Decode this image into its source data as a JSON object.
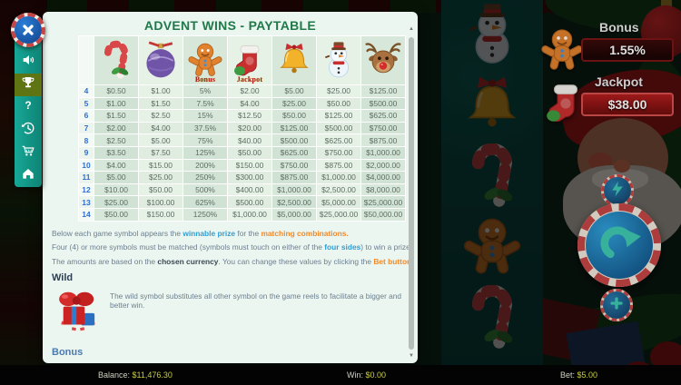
{
  "paytable": {
    "title": "ADVENT WINS - PAYTABLE",
    "symbols": [
      {
        "id": "candy-cane",
        "overlay": ""
      },
      {
        "id": "bauble",
        "overlay": ""
      },
      {
        "id": "gingerbread",
        "overlay": "Bonus"
      },
      {
        "id": "stocking",
        "overlay": "Jackpot"
      },
      {
        "id": "bell",
        "overlay": ""
      },
      {
        "id": "snowman",
        "overlay": ""
      },
      {
        "id": "reindeer",
        "overlay": ""
      }
    ],
    "rows": [
      {
        "count": "4",
        "values": [
          "$0.50",
          "$1.00",
          "5%",
          "$2.00",
          "$5.00",
          "$25.00",
          "$125.00"
        ]
      },
      {
        "count": "5",
        "values": [
          "$1.00",
          "$1.50",
          "7.5%",
          "$4.00",
          "$25.00",
          "$50.00",
          "$500.00"
        ]
      },
      {
        "count": "6",
        "values": [
          "$1.50",
          "$2.50",
          "15%",
          "$12.50",
          "$50.00",
          "$125.00",
          "$625.00"
        ]
      },
      {
        "count": "7",
        "values": [
          "$2.00",
          "$4.00",
          "37.5%",
          "$20.00",
          "$125.00",
          "$500.00",
          "$750.00"
        ]
      },
      {
        "count": "8",
        "values": [
          "$2.50",
          "$5.00",
          "75%",
          "$40.00",
          "$500.00",
          "$625.00",
          "$875.00"
        ]
      },
      {
        "count": "9",
        "values": [
          "$3.50",
          "$7.50",
          "125%",
          "$50.00",
          "$625.00",
          "$750.00",
          "$1,000.00"
        ]
      },
      {
        "count": "10",
        "values": [
          "$4.00",
          "$15.00",
          "200%",
          "$150.00",
          "$750.00",
          "$875.00",
          "$2,000.00"
        ]
      },
      {
        "count": "11",
        "values": [
          "$5.00",
          "$25.00",
          "250%",
          "$300.00",
          "$875.00",
          "$1,000.00",
          "$4,000.00"
        ]
      },
      {
        "count": "12",
        "values": [
          "$10.00",
          "$50.00",
          "500%",
          "$400.00",
          "$1,000.00",
          "$2,500.00",
          "$8,000.00"
        ]
      },
      {
        "count": "13",
        "values": [
          "$25.00",
          "$100.00",
          "625%",
          "$500.00",
          "$2,500.00",
          "$5,000.00",
          "$25,000.00"
        ]
      },
      {
        "count": "14",
        "values": [
          "$50.00",
          "$150.00",
          "1250%",
          "$1,000.00",
          "$5,000.00",
          "$25,000.00",
          "$50,000.00"
        ]
      }
    ],
    "notes": [
      {
        "segments": [
          {
            "style": "plain",
            "text": "Below each game symbol appears the "
          },
          {
            "style": "blue",
            "text": "winnable prize"
          },
          {
            "style": "plain",
            "text": " for the "
          },
          {
            "style": "orange",
            "text": "matching combinations."
          }
        ]
      },
      {
        "segments": [
          {
            "style": "plain",
            "text": "Four (4) or more symbols must be matched (symbols must touch on either of the "
          },
          {
            "style": "blue",
            "text": "four sides"
          },
          {
            "style": "plain",
            "text": ") to win a prize."
          }
        ]
      },
      {
        "segments": [
          {
            "style": "plain",
            "text": "The amounts are based on the "
          },
          {
            "style": "dark",
            "text": "chosen currency"
          },
          {
            "style": "plain",
            "text": ". You can change these values by clicking the "
          },
          {
            "style": "orange",
            "text": "Bet button."
          }
        ]
      }
    ],
    "wild": {
      "heading": "Wild",
      "text": "The wild symbol substitutes all other symbol on the game reels to facilitate a bigger and better win."
    },
    "bonus_heading": "Bonus"
  },
  "sidebar": {
    "items": [
      {
        "id": "sound",
        "active": false
      },
      {
        "id": "trophy",
        "active": true
      },
      {
        "id": "help",
        "active": false
      },
      {
        "id": "history",
        "active": false
      },
      {
        "id": "cart",
        "active": false
      },
      {
        "id": "home",
        "active": false
      }
    ]
  },
  "reel": {
    "symbols": [
      "snowman",
      "bell",
      "candy-cane",
      "gingerbread",
      "candy-cane"
    ]
  },
  "right_panel": {
    "bonus_label": "Bonus",
    "bonus_value": "1.55%",
    "jackpot_label": "Jackpot",
    "jackpot_value": "$38.00"
  },
  "status_bar": {
    "balance_label": "Balance:",
    "balance_value": "$11,476.30",
    "win_label": "Win:",
    "win_value": "$0.00",
    "bet_label": "Bet:",
    "bet_value": "$5.00"
  },
  "colors": {
    "accent_teal": "#14a392",
    "title_green": "#1f7a4a",
    "link_blue": "#2d9fd6",
    "accent_orange": "#f08a2d",
    "jackpot_red": "#b31c1c",
    "value_yellow": "#c9cf3a"
  }
}
